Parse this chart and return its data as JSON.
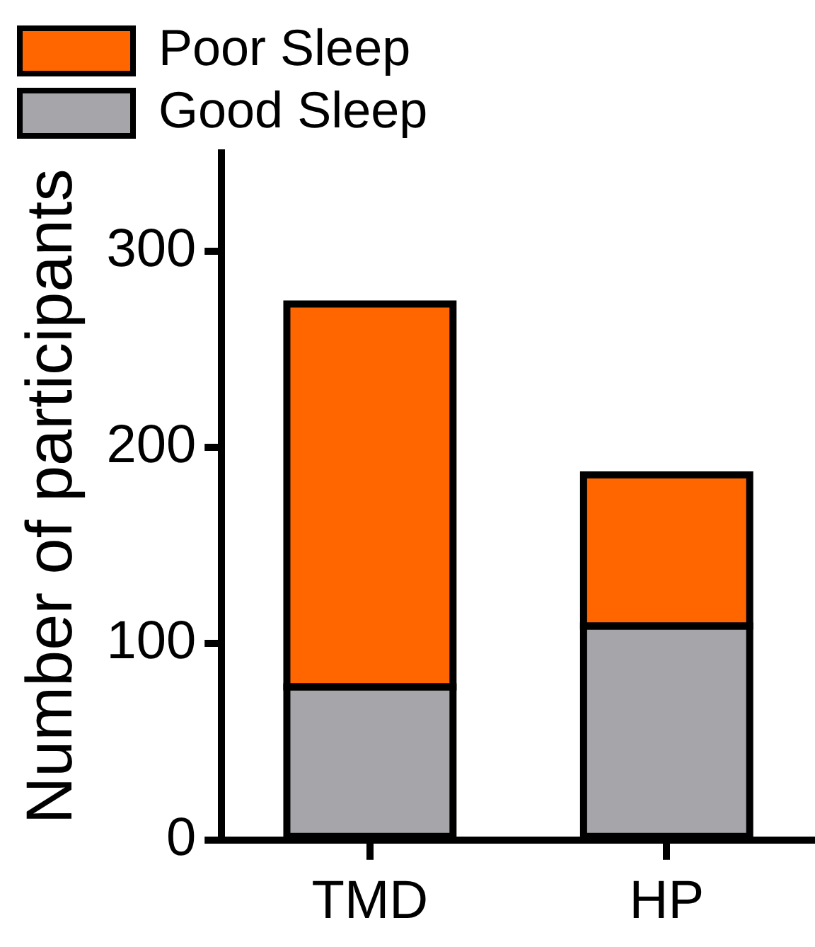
{
  "chart_data": {
    "type": "bar",
    "ylabel": "Number of participants",
    "categories": [
      "TMD",
      "HP"
    ],
    "stacked": true,
    "ylim": [
      0,
      350
    ],
    "yticks": [
      0,
      100,
      200,
      300
    ],
    "legend": "top left",
    "grid": false,
    "series": [
      {
        "name": "Good Sleep",
        "color": "#a6a5aa",
        "values": [
          78,
          109
        ]
      },
      {
        "name": "Poor Sleep",
        "color": "#ff6600",
        "values": [
          195,
          77
        ]
      }
    ]
  }
}
